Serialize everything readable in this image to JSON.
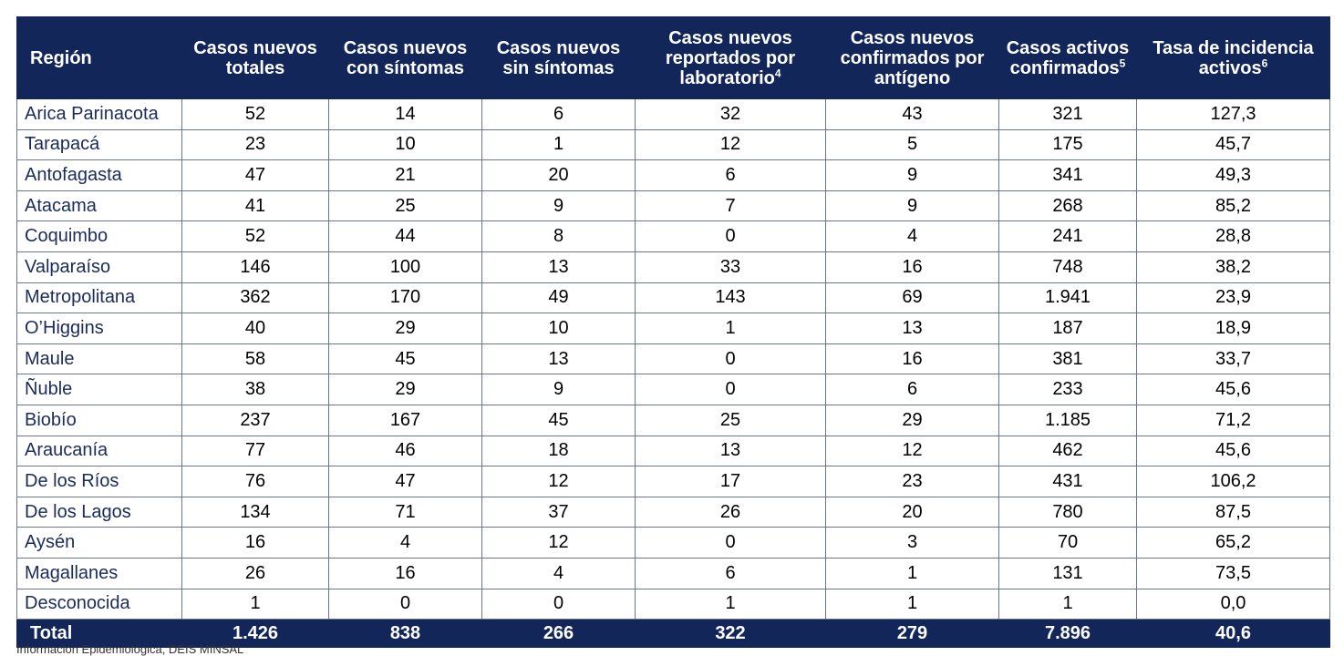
{
  "headers": {
    "region": "Región",
    "new_total": "Casos nuevos totales",
    "new_symptomatic": "Casos nuevos con síntomas",
    "new_asymptomatic": "Casos nuevos sin síntomas",
    "new_lab": "Casos nuevos reportados por laboratorio",
    "new_lab_sup": "4",
    "new_antigen": "Casos nuevos confirmados por antígeno",
    "active": "Casos activos confirmados",
    "active_sup": "5",
    "incidence": "Tasa de incidencia activos",
    "incidence_sup": "6"
  },
  "rows": [
    {
      "region": "Arica Parinacota",
      "new_total": "52",
      "new_symptomatic": "14",
      "new_asymptomatic": "6",
      "new_lab": "32",
      "new_antigen": "43",
      "active": "321",
      "incidence": "127,3"
    },
    {
      "region": "Tarapacá",
      "new_total": "23",
      "new_symptomatic": "10",
      "new_asymptomatic": "1",
      "new_lab": "12",
      "new_antigen": "5",
      "active": "175",
      "incidence": "45,7"
    },
    {
      "region": "Antofagasta",
      "new_total": "47",
      "new_symptomatic": "21",
      "new_asymptomatic": "20",
      "new_lab": "6",
      "new_antigen": "9",
      "active": "341",
      "incidence": "49,3"
    },
    {
      "region": "Atacama",
      "new_total": "41",
      "new_symptomatic": "25",
      "new_asymptomatic": "9",
      "new_lab": "7",
      "new_antigen": "9",
      "active": "268",
      "incidence": "85,2"
    },
    {
      "region": "Coquimbo",
      "new_total": "52",
      "new_symptomatic": "44",
      "new_asymptomatic": "8",
      "new_lab": "0",
      "new_antigen": "4",
      "active": "241",
      "incidence": "28,8"
    },
    {
      "region": "Valparaíso",
      "new_total": "146",
      "new_symptomatic": "100",
      "new_asymptomatic": "13",
      "new_lab": "33",
      "new_antigen": "16",
      "active": "748",
      "incidence": "38,2"
    },
    {
      "region": "Metropolitana",
      "new_total": "362",
      "new_symptomatic": "170",
      "new_asymptomatic": "49",
      "new_lab": "143",
      "new_antigen": "69",
      "active": "1.941",
      "incidence": "23,9"
    },
    {
      "region": "O’Higgins",
      "new_total": "40",
      "new_symptomatic": "29",
      "new_asymptomatic": "10",
      "new_lab": "1",
      "new_antigen": "13",
      "active": "187",
      "incidence": "18,9"
    },
    {
      "region": "Maule",
      "new_total": "58",
      "new_symptomatic": "45",
      "new_asymptomatic": "13",
      "new_lab": "0",
      "new_antigen": "16",
      "active": "381",
      "incidence": "33,7"
    },
    {
      "region": "Ñuble",
      "new_total": "38",
      "new_symptomatic": "29",
      "new_asymptomatic": "9",
      "new_lab": "0",
      "new_antigen": "6",
      "active": "233",
      "incidence": "45,6"
    },
    {
      "region": "Biobío",
      "new_total": "237",
      "new_symptomatic": "167",
      "new_asymptomatic": "45",
      "new_lab": "25",
      "new_antigen": "29",
      "active": "1.185",
      "incidence": "71,2"
    },
    {
      "region": "Araucanía",
      "new_total": "77",
      "new_symptomatic": "46",
      "new_asymptomatic": "18",
      "new_lab": "13",
      "new_antigen": "12",
      "active": "462",
      "incidence": "45,6"
    },
    {
      "region": "De los Ríos",
      "new_total": "76",
      "new_symptomatic": "47",
      "new_asymptomatic": "12",
      "new_lab": "17",
      "new_antigen": "23",
      "active": "431",
      "incidence": "106,2"
    },
    {
      "region": "De los Lagos",
      "new_total": "134",
      "new_symptomatic": "71",
      "new_asymptomatic": "37",
      "new_lab": "26",
      "new_antigen": "20",
      "active": "780",
      "incidence": "87,5"
    },
    {
      "region": "Aysén",
      "new_total": "16",
      "new_symptomatic": "4",
      "new_asymptomatic": "12",
      "new_lab": "0",
      "new_antigen": "3",
      "active": "70",
      "incidence": "65,2"
    },
    {
      "region": "Magallanes",
      "new_total": "26",
      "new_symptomatic": "16",
      "new_asymptomatic": "4",
      "new_lab": "6",
      "new_antigen": "1",
      "active": "131",
      "incidence": "73,5"
    },
    {
      "region": "Desconocida",
      "new_total": "1",
      "new_symptomatic": "0",
      "new_asymptomatic": "0",
      "new_lab": "1",
      "new_antigen": "1",
      "active": "1",
      "incidence": "0,0"
    }
  ],
  "total": {
    "region": "Total",
    "new_total": "1.426",
    "new_symptomatic": "838",
    "new_asymptomatic": "266",
    "new_lab": "322",
    "new_antigen": "279",
    "active": "7.896",
    "incidence": "40,6"
  },
  "footer": "Información Epidemiológica, DEIS MINSAL",
  "colors": {
    "header_bg": "#13265a",
    "header_text": "#ffffff",
    "region_text": "#1a2b5c",
    "border": "#6a7690"
  }
}
